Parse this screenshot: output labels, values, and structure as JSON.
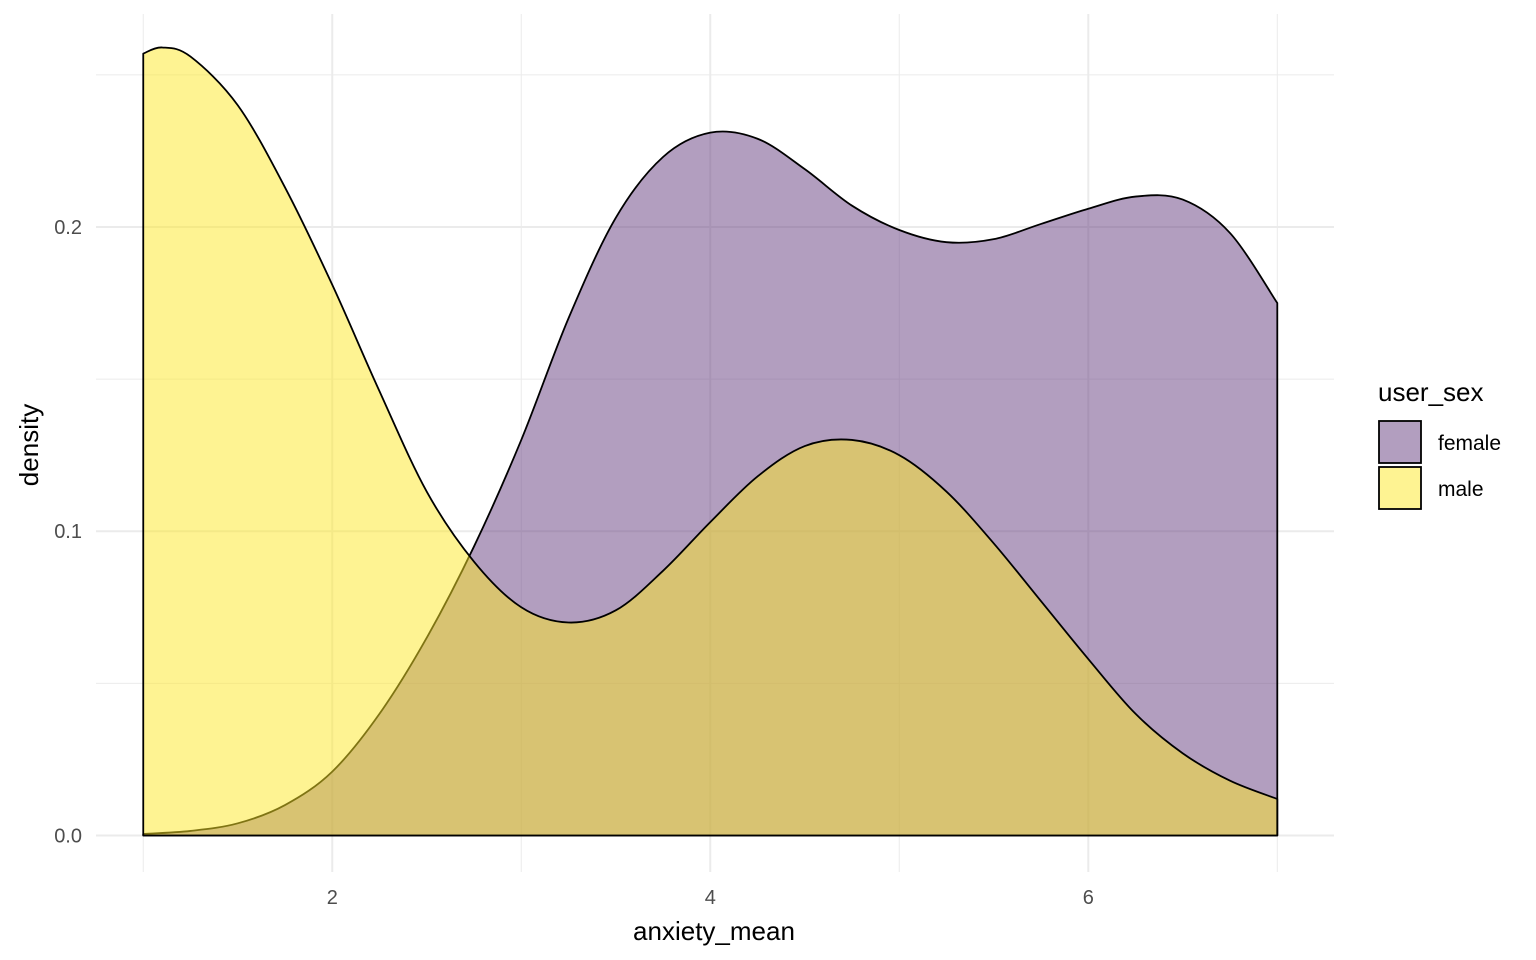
{
  "chart_data": {
    "type": "area",
    "xlabel": "anxiety_mean",
    "ylabel": "density",
    "xlim": [
      0.75,
      7.3
    ],
    "ylim": [
      -0.012,
      0.27
    ],
    "x_ticks": [
      2,
      4,
      6
    ],
    "x_tick_labels": [
      "2",
      "4",
      "6"
    ],
    "y_ticks": [
      0.0,
      0.1,
      0.2
    ],
    "y_tick_labels": [
      "0.0",
      "0.1",
      "0.2"
    ],
    "grid": true,
    "legend": {
      "title": "user_sex",
      "position": "right",
      "entries": [
        "female",
        "male"
      ]
    },
    "colors": {
      "female": "#663d80",
      "male": "#fde725",
      "grid": "#ebebeb",
      "outline": "#000000"
    },
    "series": [
      {
        "name": "female",
        "x": [
          1.0,
          1.25,
          1.5,
          1.75,
          2.0,
          2.25,
          2.5,
          2.75,
          3.0,
          3.25,
          3.5,
          3.75,
          4.0,
          4.25,
          4.5,
          4.75,
          5.0,
          5.25,
          5.5,
          5.75,
          6.0,
          6.25,
          6.5,
          6.75,
          7.0
        ],
        "y": [
          0.0005,
          0.0015,
          0.004,
          0.01,
          0.021,
          0.04,
          0.065,
          0.095,
          0.13,
          0.17,
          0.203,
          0.223,
          0.231,
          0.229,
          0.219,
          0.207,
          0.199,
          0.195,
          0.196,
          0.201,
          0.206,
          0.21,
          0.209,
          0.198,
          0.175
        ]
      },
      {
        "name": "male",
        "x": [
          1.0,
          1.1,
          1.25,
          1.5,
          1.75,
          2.0,
          2.25,
          2.5,
          2.75,
          3.0,
          3.25,
          3.5,
          3.75,
          4.0,
          4.25,
          4.5,
          4.75,
          5.0,
          5.25,
          5.5,
          5.75,
          6.0,
          6.25,
          6.5,
          6.75,
          7.0
        ],
        "y": [
          0.257,
          0.259,
          0.256,
          0.24,
          0.213,
          0.181,
          0.146,
          0.113,
          0.09,
          0.075,
          0.07,
          0.074,
          0.087,
          0.103,
          0.118,
          0.128,
          0.13,
          0.125,
          0.113,
          0.096,
          0.077,
          0.058,
          0.04,
          0.027,
          0.018,
          0.012
        ]
      }
    ]
  }
}
